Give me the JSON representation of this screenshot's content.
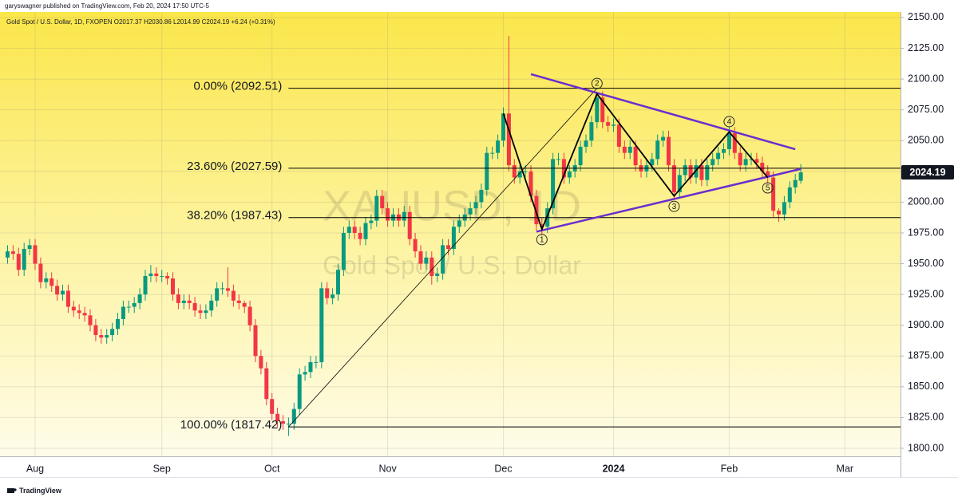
{
  "publisher_line": "garyswagner published on TradingView.com, Feb 20, 2024 17:50 UTC-5",
  "brand": "TradingView",
  "watermark": {
    "symbol": "XAUUSD, 1D",
    "description": "Gold Spot / U.S. Dollar"
  },
  "chart_data": {
    "type": "candlestick",
    "title": "Gold Spot / U.S. Dollar, 1D, FXOPEN  O2017.37 H2030.86 L2014.99 C2024.19 +6.24 (+0.31%)",
    "up_color": "#089981",
    "down_color": "#f23645",
    "categories": [
      null,
      null,
      null,
      null,
      null,
      "Aug",
      null,
      null,
      null,
      null,
      null,
      null,
      null,
      null,
      null,
      null,
      null,
      null,
      null,
      null,
      null,
      null,
      null,
      null,
      null,
      null,
      null,
      null,
      "Sep",
      null,
      null,
      null,
      null,
      null,
      null,
      null,
      null,
      null,
      null,
      null,
      null,
      null,
      null,
      null,
      null,
      null,
      null,
      null,
      "Oct",
      null,
      null,
      null,
      null,
      null,
      null,
      null,
      null,
      null,
      null,
      null,
      null,
      null,
      null,
      null,
      null,
      null,
      null,
      null,
      null,
      "Nov",
      null,
      null,
      null,
      null,
      null,
      null,
      null,
      null,
      null,
      null,
      null,
      null,
      null,
      null,
      null,
      null,
      null,
      null,
      null,
      null,
      "Dec",
      null,
      null,
      null,
      null,
      null,
      null,
      null,
      null,
      null,
      null,
      null,
      null,
      null,
      null,
      null,
      null,
      null,
      null,
      null,
      "2024",
      null,
      null,
      null,
      null,
      null,
      null,
      null,
      null,
      null,
      null,
      null,
      null,
      null,
      null,
      null,
      null,
      null,
      null,
      null,
      null,
      "Feb",
      null,
      null,
      null,
      null,
      null,
      null,
      null,
      null,
      null,
      null,
      null,
      null,
      null,
      null,
      null,
      null,
      null,
      null,
      null,
      null,
      "Mar",
      null,
      null,
      null,
      null,
      null,
      null,
      null,
      null,
      null,
      null
    ],
    "open": [
      1955,
      1960,
      1958,
      1945,
      1962,
      1965,
      1950,
      1935,
      1938,
      1932,
      1925,
      1928,
      1915,
      1912,
      1910,
      1908,
      1900,
      1892,
      1890,
      1892,
      1897,
      1905,
      1915,
      1915,
      1918,
      1925,
      1940,
      1942,
      1940,
      1940,
      1938,
      1925,
      1918,
      1920,
      1918,
      1912,
      1910,
      1912,
      1920,
      1930,
      1930,
      1928,
      1920,
      1918,
      1915,
      1900,
      1875,
      1865,
      1840,
      1828,
      1822,
      1820,
      1820,
      1832,
      1860,
      1862,
      1870,
      1870,
      1930,
      1922,
      1925,
      1945,
      1975,
      1980,
      1975,
      1970,
      1983,
      1985,
      2005,
      1995,
      1985,
      1990,
      1985,
      1992,
      1970,
      1960,
      1950,
      1955,
      1940,
      1942,
      1965,
      1962,
      1980,
      1985,
      1990,
      1995,
      2000,
      2010,
      2040,
      2040,
      2050,
      2072,
      2030,
      2020,
      2025,
      2025,
      2005,
      1982,
      1980,
      1995,
      2035,
      2035,
      2020,
      2025,
      2030,
      2045,
      2050,
      2065,
      2085,
      2065,
      2062,
      2063,
      2045,
      2040,
      2045,
      2030,
      2025,
      2030,
      2035,
      2050,
      2053,
      2030,
      2008,
      2022,
      2030,
      2020,
      2030,
      2018,
      2030,
      2035,
      2040,
      2043,
      2056,
      2040,
      2030,
      2035,
      2035,
      2032,
      2025,
      2020,
      1993,
      1990,
      2000,
      2012,
      2017.37,
      null,
      null,
      null,
      null,
      null,
      null,
      null,
      null,
      null,
      null,
      null,
      null,
      null,
      null,
      null,
      null,
      null,
      null
    ],
    "high": [
      1965,
      1965,
      1963,
      1967,
      1970,
      1970,
      1955,
      1943,
      1943,
      1937,
      1933,
      1933,
      1920,
      1917,
      1915,
      1913,
      1905,
      1897,
      1897,
      1902,
      1910,
      1920,
      1920,
      1923,
      1930,
      1945,
      1949,
      1947,
      1945,
      1943,
      1943,
      1930,
      1925,
      1925,
      1923,
      1917,
      1917,
      1925,
      1935,
      1935,
      1947,
      1933,
      1925,
      1920,
      1920,
      1905,
      1880,
      1870,
      1845,
      1833,
      1827,
      1825,
      1837,
      1865,
      1867,
      1875,
      1875,
      1935,
      1935,
      1930,
      1950,
      1980,
      1985,
      1985,
      1980,
      1988,
      1990,
      2010,
      2010,
      2000,
      1995,
      1995,
      1997,
      1997,
      1975,
      1965,
      1960,
      1960,
      1947,
      1970,
      1970,
      1985,
      1990,
      1995,
      2000,
      2005,
      2015,
      2045,
      2045,
      2055,
      2077,
      2135,
      2035,
      2030,
      2030,
      2030,
      2010,
      1987,
      2000,
      2040,
      2040,
      2040,
      2030,
      2035,
      2050,
      2055,
      2070,
      2088,
      2090,
      2070,
      2068,
      2068,
      2050,
      2050,
      2050,
      2035,
      2035,
      2040,
      2055,
      2058,
      2058,
      2035,
      2027,
      2035,
      2035,
      2035,
      2035,
      2035,
      2040,
      2045,
      2048,
      2061,
      2061,
      2045,
      2040,
      2040,
      2040,
      2037,
      2030,
      2025,
      1995,
      2005,
      2017,
      2023,
      2030.86,
      null,
      null,
      null,
      null,
      null,
      null,
      null,
      null,
      null,
      null,
      null,
      null,
      null,
      null,
      null,
      null,
      null,
      null
    ],
    "low": [
      1950,
      1953,
      1940,
      1940,
      1957,
      1945,
      1930,
      1930,
      1927,
      1920,
      1920,
      1910,
      1907,
      1905,
      1903,
      1895,
      1887,
      1885,
      1885,
      1887,
      1892,
      1900,
      1910,
      1910,
      1913,
      1920,
      1935,
      1935,
      1935,
      1933,
      1920,
      1913,
      1913,
      1913,
      1907,
      1905,
      1905,
      1907,
      1915,
      1925,
      1923,
      1915,
      1913,
      1910,
      1895,
      1870,
      1860,
      1835,
      1823,
      1817,
      1815,
      1810,
      1815,
      1827,
      1855,
      1857,
      1865,
      1865,
      1917,
      1917,
      1920,
      1940,
      1970,
      1970,
      1965,
      1965,
      1978,
      1980,
      1990,
      1980,
      1980,
      1980,
      1980,
      1965,
      1955,
      1945,
      1945,
      1933,
      1935,
      1937,
      1957,
      1957,
      1975,
      1980,
      1985,
      1990,
      1995,
      2005,
      2035,
      2035,
      2045,
      2025,
      2015,
      2015,
      2020,
      2000,
      1977,
      1973,
      1975,
      1990,
      2030,
      2015,
      2015,
      2020,
      2025,
      2040,
      2045,
      2060,
      2060,
      2057,
      2057,
      2040,
      2035,
      2035,
      2025,
      2020,
      2020,
      2025,
      2030,
      2045,
      2025,
      2003,
      2003,
      2017,
      2015,
      2015,
      2013,
      2013,
      2025,
      2030,
      2035,
      2038,
      2035,
      2025,
      2025,
      2030,
      2027,
      2020,
      2015,
      1988,
      1984,
      1985,
      1995,
      2007,
      2014.99,
      null,
      null,
      null,
      null,
      null,
      null,
      null,
      null,
      null,
      null,
      null,
      null,
      null,
      null,
      null,
      null,
      null,
      null
    ],
    "close": [
      1960,
      1958,
      1945,
      1962,
      1965,
      1950,
      1935,
      1938,
      1932,
      1925,
      1928,
      1915,
      1912,
      1910,
      1908,
      1900,
      1892,
      1890,
      1892,
      1897,
      1905,
      1915,
      1915,
      1918,
      1925,
      1940,
      1942,
      1940,
      1940,
      1938,
      1925,
      1918,
      1920,
      1918,
      1912,
      1910,
      1912,
      1920,
      1930,
      1930,
      1928,
      1920,
      1918,
      1915,
      1900,
      1875,
      1865,
      1840,
      1828,
      1822,
      1820,
      1820,
      1832,
      1860,
      1862,
      1870,
      1870,
      1930,
      1922,
      1925,
      1945,
      1975,
      1980,
      1975,
      1970,
      1983,
      1985,
      2005,
      1995,
      1985,
      1990,
      1985,
      1992,
      1970,
      1960,
      1950,
      1955,
      1940,
      1942,
      1965,
      1962,
      1980,
      1985,
      1990,
      1995,
      2000,
      2010,
      2040,
      2040,
      2050,
      2072,
      2030,
      2020,
      2025,
      2025,
      2005,
      1982,
      1980,
      1995,
      2035,
      2035,
      2020,
      2025,
      2030,
      2045,
      2050,
      2065,
      2085,
      2065,
      2062,
      2063,
      2045,
      2040,
      2045,
      2030,
      2025,
      2030,
      2035,
      2050,
      2053,
      2030,
      2008,
      2022,
      2030,
      2020,
      2030,
      2018,
      2030,
      2035,
      2040,
      2043,
      2056,
      2040,
      2030,
      2035,
      2035,
      2032,
      2025,
      2020,
      1993,
      1990,
      2000,
      2012,
      2018,
      2024.19,
      null,
      null,
      null,
      null,
      null,
      null,
      null,
      null,
      null,
      null,
      null,
      null,
      null,
      null,
      null,
      null,
      null,
      null
    ],
    "ylim": [
      1793.5,
      2154.5
    ],
    "yticks": [
      {
        "value": 1800,
        "label": "1800.00"
      },
      {
        "value": 1825,
        "label": "1825.00"
      },
      {
        "value": 1850,
        "label": "1850.00"
      },
      {
        "value": 1875,
        "label": "1875.00"
      },
      {
        "value": 1900,
        "label": "1900.00"
      },
      {
        "value": 1925,
        "label": "1925.00"
      },
      {
        "value": 1950,
        "label": "1950.00"
      },
      {
        "value": 1975,
        "label": "1975.00"
      },
      {
        "value": 2000,
        "label": "2000.00"
      },
      {
        "value": 2025,
        "label": "2025.00"
      },
      {
        "value": 2050,
        "label": "2050.00"
      },
      {
        "value": 2075,
        "label": "2075.00"
      },
      {
        "value": 2100,
        "label": "2100.00"
      },
      {
        "value": 2125,
        "label": "2125.00"
      },
      {
        "value": 2150,
        "label": "2150.00"
      }
    ],
    "grid": true,
    "fib_levels": [
      {
        "value": 2092.51,
        "label": "0.00% (2092.51)"
      },
      {
        "value": 2027.59,
        "label": "23.60% (2027.59)"
      },
      {
        "value": 1987.43,
        "label": "38.20% (1987.43)"
      },
      {
        "value": 1817.42,
        "label": "100.00% (1817.42)"
      }
    ],
    "fib_line": {
      "color": "#000000",
      "points": [
        {
          "bar": 51,
          "value": 1817.42
        },
        {
          "bar": 107,
          "value": 2092.51
        }
      ]
    },
    "wave": {
      "color": "#000000",
      "points": [
        {
          "bar": 90,
          "value": 2072
        },
        {
          "label": "1",
          "bar": 97,
          "value": 1978
        },
        {
          "label": "2",
          "bar": 107,
          "value": 2088
        },
        {
          "label": "3",
          "bar": 121,
          "value": 2005
        },
        {
          "label": "4",
          "bar": 131,
          "value": 2057
        },
        {
          "label": "5",
          "bar": 138,
          "value": 2020
        }
      ]
    },
    "trendlines": [
      {
        "color": "#6a2ecf",
        "points": [
          {
            "bar": 95,
            "value": 2104
          },
          {
            "bar": 143,
            "value": 2043
          }
        ]
      },
      {
        "color": "#6a2ecf",
        "points": [
          {
            "bar": 96,
            "value": 1976
          },
          {
            "bar": 144,
            "value": 2027
          }
        ]
      }
    ]
  }
}
